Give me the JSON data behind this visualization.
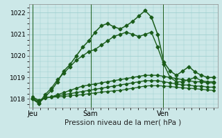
{
  "title": "Pression niveau de la mer( hPa )",
  "background_color": "#cce8e8",
  "plot_bg": "#cce8e8",
  "grid_color": "#99cccc",
  "line_color": "#1a5c1a",
  "ylim": [
    1017.6,
    1022.4
  ],
  "yticks": [
    1018,
    1019,
    1020,
    1021,
    1022
  ],
  "xtick_labels": [
    "Jeu",
    "Sam",
    "Ven"
  ],
  "xtick_positions": [
    0.0,
    0.32,
    0.72
  ],
  "num_points": 30,
  "series": [
    [
      1018.0,
      1017.8,
      1018.1,
      1018.4,
      1018.8,
      1019.3,
      1019.6,
      1020.0,
      1020.4,
      1020.7,
      1021.1,
      1021.4,
      1021.5,
      1021.35,
      1021.25,
      1021.4,
      1021.6,
      1021.85,
      1022.1,
      1021.8,
      1021.0,
      1019.7,
      1019.3,
      1019.1,
      1019.3,
      1019.5,
      1019.25,
      1019.1,
      1019.0,
      1019.0
    ],
    [
      1018.0,
      1017.8,
      1018.2,
      1018.5,
      1018.9,
      1019.2,
      1019.5,
      1019.8,
      1020.0,
      1020.2,
      1020.3,
      1020.5,
      1020.7,
      1020.9,
      1021.0,
      1021.1,
      1021.0,
      1020.9,
      1021.0,
      1021.1,
      1020.4,
      1019.6,
      1019.0,
      1018.8,
      1018.8,
      1018.9,
      1019.0,
      1018.85,
      1018.8,
      1018.8
    ],
    [
      1018.0,
      1017.85,
      1018.05,
      1018.1,
      1018.2,
      1018.3,
      1018.4,
      1018.5,
      1018.6,
      1018.65,
      1018.7,
      1018.75,
      1018.8,
      1018.85,
      1018.9,
      1018.95,
      1019.0,
      1019.05,
      1019.1,
      1019.1,
      1019.1,
      1019.05,
      1019.0,
      1018.95,
      1018.9,
      1018.85,
      1018.8,
      1018.8,
      1018.75,
      1018.75
    ],
    [
      1018.05,
      1017.9,
      1018.05,
      1018.1,
      1018.15,
      1018.2,
      1018.25,
      1018.3,
      1018.35,
      1018.4,
      1018.45,
      1018.5,
      1018.55,
      1018.6,
      1018.65,
      1018.7,
      1018.75,
      1018.8,
      1018.85,
      1018.85,
      1018.85,
      1018.8,
      1018.75,
      1018.7,
      1018.65,
      1018.65,
      1018.6,
      1018.6,
      1018.55,
      1018.55
    ],
    [
      1018.1,
      1017.95,
      1018.05,
      1018.08,
      1018.1,
      1018.12,
      1018.15,
      1018.18,
      1018.2,
      1018.25,
      1018.28,
      1018.32,
      1018.35,
      1018.38,
      1018.4,
      1018.45,
      1018.5,
      1018.55,
      1018.6,
      1018.62,
      1018.62,
      1018.6,
      1018.58,
      1018.55,
      1018.52,
      1018.5,
      1018.48,
      1018.45,
      1018.42,
      1018.4
    ]
  ]
}
